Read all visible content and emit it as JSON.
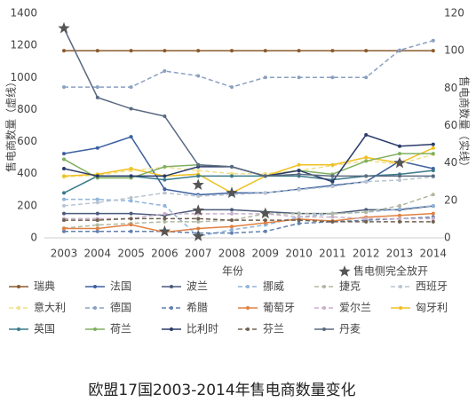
{
  "chart_data": {
    "type": "line",
    "title": "欧盟17国2003-2014年售电商数量变化",
    "x_label": "年份",
    "y_label": "售电商数量（虚线）",
    "y2_label": "售电商数量（实线）",
    "categories": [
      "2003",
      "2004",
      "2005",
      "2006",
      "2007",
      "2008",
      "2009",
      "2010",
      "2011",
      "2012",
      "2013",
      "2014"
    ],
    "ylim": [
      0,
      1400
    ],
    "yticks": [
      0,
      200,
      400,
      600,
      800,
      1000,
      1200,
      1400
    ],
    "y2lim": [
      0,
      120
    ],
    "y2ticks": [
      0,
      20,
      40,
      60,
      80,
      100,
      120
    ],
    "series": [
      {
        "name": "瑞典",
        "color": "#8b5a2b",
        "axis": "y2",
        "values": [
          100,
          100,
          100,
          100,
          100,
          100,
          100,
          100,
          100,
          100,
          100,
          100
        ]
      },
      {
        "name": "法国",
        "color": "#3b5fa0",
        "axis": "y2",
        "values": [
          45,
          48,
          54,
          26,
          23,
          24,
          24,
          26,
          28,
          30,
          41,
          37
        ]
      },
      {
        "name": "波兰",
        "color": "#4a5a7a",
        "axis": "y2",
        "values": [
          13,
          13,
          13,
          12,
          15,
          15,
          14,
          13,
          13,
          15,
          15,
          17
        ]
      },
      {
        "name": "挪威",
        "color": "#8fb4dc",
        "axis": "y",
        "values": [
          240,
          240,
          230,
          200,
          10,
          50,
          80,
          130,
          150,
          160,
          180,
          200
        ]
      },
      {
        "name": "捷克",
        "color": "#b0b8a0",
        "axis": "y",
        "values": [
          60,
          80,
          90,
          100,
          100,
          110,
          150,
          150,
          150,
          160,
          200,
          270
        ]
      },
      {
        "name": "西班牙",
        "color": "#b8c4d0",
        "axis": "y",
        "values": [
          200,
          220,
          250,
          280,
          260,
          270,
          280,
          300,
          320,
          350,
          360,
          380
        ]
      },
      {
        "name": "意大利",
        "color": "#f0e08a",
        "axis": "y",
        "values": [
          380,
          390,
          420,
          440,
          420,
          400,
          400,
          420,
          450,
          480,
          460,
          520
        ]
      },
      {
        "name": "德国",
        "color": "#8aa0c0",
        "axis": "y",
        "values": [
          940,
          940,
          940,
          1040,
          1010,
          940,
          1000,
          1000,
          1000,
          1000,
          1170,
          1230
        ]
      },
      {
        "name": "希腊",
        "color": "#6080b0",
        "axis": "y",
        "values": [
          40,
          40,
          40,
          40,
          30,
          30,
          40,
          90,
          100,
          110,
          120,
          130
        ]
      },
      {
        "name": "葡萄牙",
        "color": "#e08040",
        "axis": "y2",
        "values": [
          5,
          5,
          7,
          3,
          5,
          6,
          8,
          10,
          9,
          11,
          12,
          13
        ]
      },
      {
        "name": "爱尔兰",
        "color": "#c8b0c8",
        "axis": "y",
        "values": [
          120,
          120,
          120,
          150,
          150,
          150,
          150,
          130,
          130,
          120,
          120,
          120
        ]
      },
      {
        "name": "匈牙利",
        "color": "#f0c020",
        "axis": "y2",
        "values": [
          33,
          34,
          37,
          33,
          34,
          24,
          33,
          39,
          39,
          43,
          40,
          48
        ]
      },
      {
        "name": "英国",
        "color": "#3a7a8a",
        "axis": "y2",
        "values": [
          24,
          33,
          33,
          31,
          33,
          33,
          33,
          33,
          31,
          33,
          34,
          36
        ]
      },
      {
        "name": "荷兰",
        "color": "#80b060",
        "axis": "y2",
        "values": [
          42,
          32,
          32,
          38,
          39,
          38,
          33,
          36,
          34,
          41,
          45,
          45
        ]
      },
      {
        "name": "比利时",
        "color": "#2a3a6a",
        "axis": "y2",
        "values": [
          37,
          33,
          33,
          33,
          38,
          38,
          33,
          36,
          30,
          55,
          49,
          50
        ]
      },
      {
        "name": "芬兰",
        "color": "#706050",
        "axis": "y",
        "values": [
          110,
          110,
          120,
          120,
          120,
          110,
          110,
          110,
          100,
          100,
          100,
          100
        ]
      },
      {
        "name": "丹麦",
        "color": "#5a6a80",
        "axis": "y2",
        "values": [
          112,
          75,
          69,
          65,
          39,
          38,
          33,
          34,
          33,
          33,
          33,
          33
        ]
      }
    ],
    "markers": {
      "name": "售电侧完全放开",
      "color": "#555",
      "axis": "y2",
      "x": [
        "2003",
        "2006",
        "2007",
        "2007",
        "2007",
        "2008",
        "2009",
        "2013"
      ],
      "values": [
        112,
        3.4,
        28.3,
        14.6,
        0.9,
        24,
        13,
        40
      ]
    }
  }
}
